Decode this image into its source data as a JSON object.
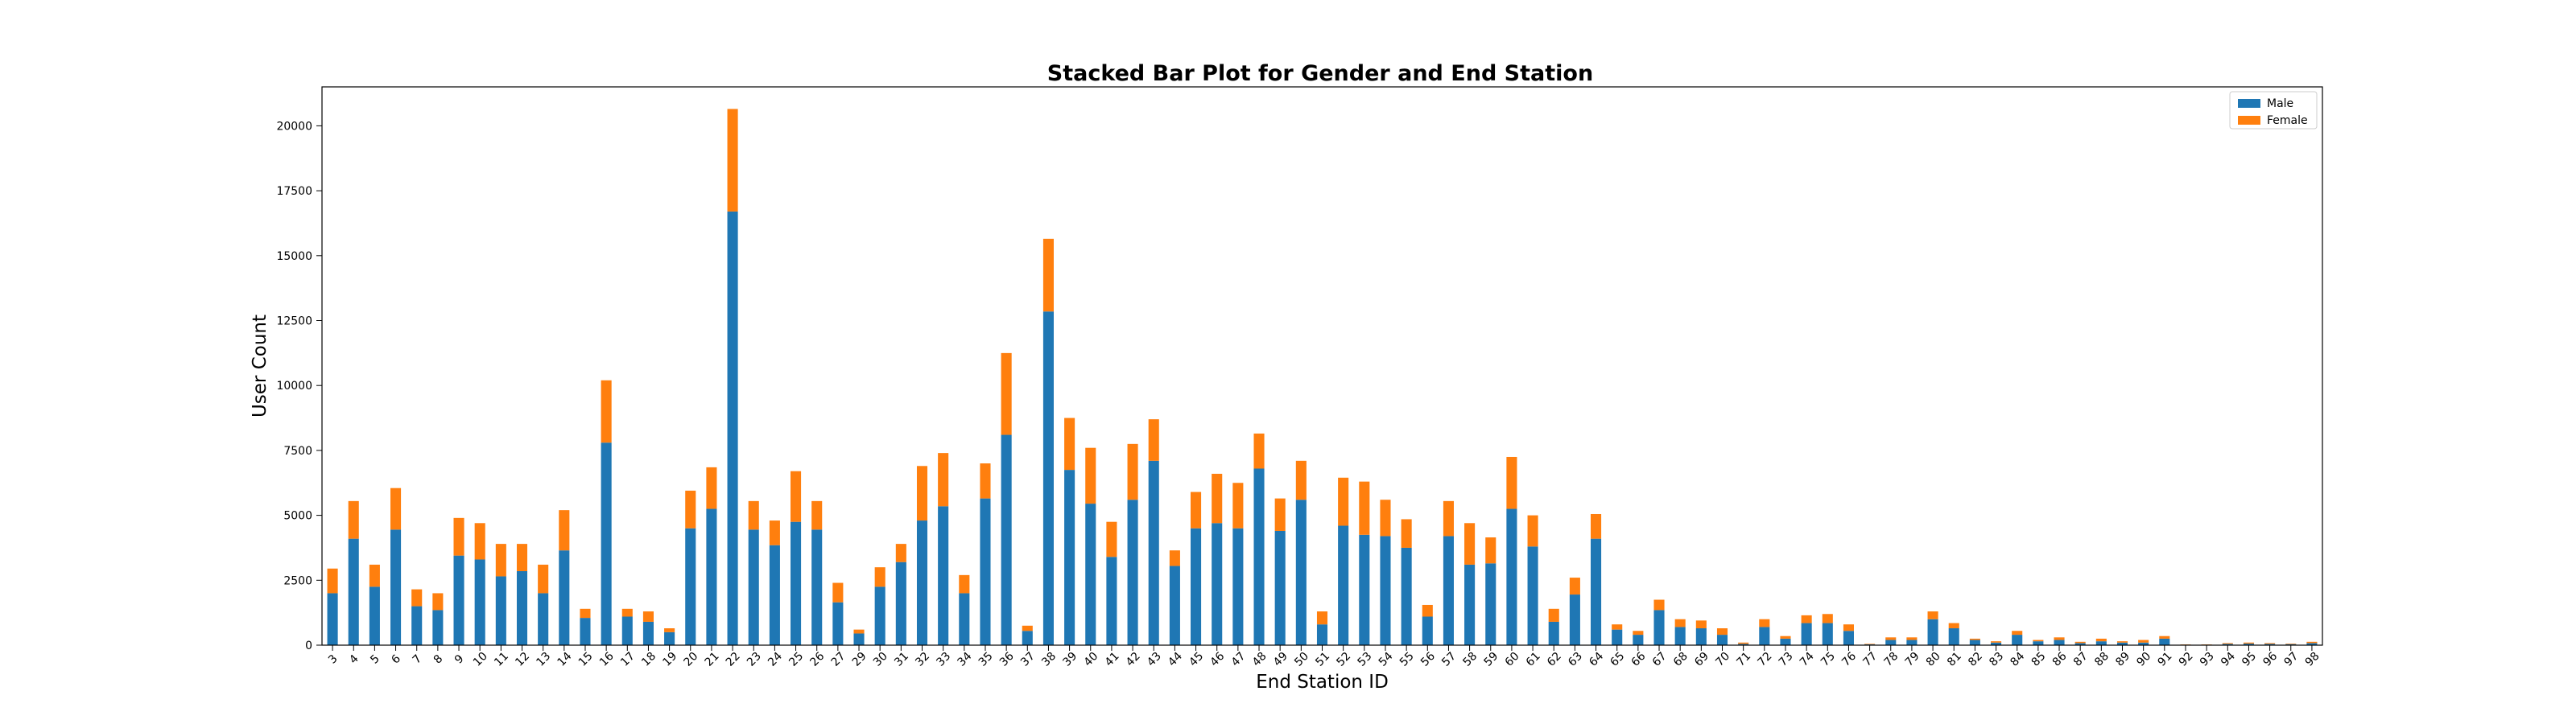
{
  "chart_data": {
    "type": "bar",
    "stacked": true,
    "title": "Stacked Bar Plot for Gender and End Station",
    "xlabel": "End Station ID",
    "ylabel": "User Count",
    "ylim": [
      0,
      21500
    ],
    "yticks": [
      0,
      2500,
      5000,
      7500,
      10000,
      12500,
      15000,
      17500,
      20000
    ],
    "legend_position": "top-right",
    "grid": false,
    "categories": [
      "3",
      "4",
      "5",
      "6",
      "7",
      "8",
      "9",
      "10",
      "11",
      "12",
      "13",
      "14",
      "15",
      "16",
      "17",
      "18",
      "19",
      "20",
      "21",
      "22",
      "23",
      "24",
      "25",
      "26",
      "27",
      "29",
      "30",
      "31",
      "32",
      "33",
      "34",
      "35",
      "36",
      "37",
      "38",
      "39",
      "40",
      "41",
      "42",
      "43",
      "44",
      "45",
      "46",
      "47",
      "48",
      "49",
      "50",
      "51",
      "52",
      "53",
      "54",
      "55",
      "56",
      "57",
      "58",
      "59",
      "60",
      "61",
      "62",
      "63",
      "64",
      "65",
      "66",
      "67",
      "68",
      "69",
      "70",
      "71",
      "72",
      "73",
      "74",
      "75",
      "76",
      "77",
      "78",
      "79",
      "80",
      "81",
      "82",
      "83",
      "84",
      "85",
      "86",
      "87",
      "88",
      "89",
      "90",
      "91",
      "92",
      "93",
      "94",
      "95",
      "96",
      "97",
      "98"
    ],
    "series": [
      {
        "name": "Male",
        "color": "#1f77b4",
        "values": [
          2000,
          4100,
          2250,
          4450,
          1500,
          1350,
          3450,
          3300,
          2650,
          2850,
          2000,
          3650,
          1050,
          7800,
          1100,
          900,
          500,
          4500,
          5250,
          16700,
          4450,
          3850,
          4750,
          4450,
          1650,
          450,
          2250,
          3200,
          4800,
          5350,
          2000,
          5650,
          8100,
          550,
          12850,
          6750,
          5450,
          3400,
          5600,
          7100,
          3050,
          4500,
          4700,
          4500,
          6800,
          4400,
          5600,
          800,
          4600,
          4250,
          4200,
          3750,
          1100,
          4200,
          3100,
          3150,
          5250,
          3800,
          900,
          1950,
          4100,
          600,
          400,
          1350,
          700,
          650,
          400,
          50,
          700,
          250,
          850,
          850,
          550,
          30,
          200,
          200,
          1000,
          650,
          200,
          100,
          400,
          150,
          200,
          80,
          150,
          100,
          100,
          250,
          20,
          20,
          50,
          60,
          50,
          40,
          80
        ]
      },
      {
        "name": "Female",
        "color": "#ff7f0e",
        "values": [
          950,
          1450,
          850,
          1600,
          650,
          650,
          1450,
          1400,
          1250,
          1050,
          1100,
          1550,
          350,
          2400,
          300,
          400,
          150,
          1450,
          1600,
          3950,
          1100,
          950,
          1950,
          1100,
          750,
          150,
          750,
          700,
          2100,
          2050,
          700,
          1350,
          3150,
          200,
          2800,
          2000,
          2150,
          1350,
          2150,
          1600,
          600,
          1400,
          1900,
          1750,
          1350,
          1250,
          1500,
          500,
          1850,
          2050,
          1400,
          1100,
          450,
          1350,
          1600,
          1000,
          2000,
          1200,
          500,
          650,
          950,
          200,
          150,
          400,
          300,
          300,
          250,
          50,
          300,
          100,
          300,
          350,
          250,
          20,
          100,
          100,
          300,
          200,
          50,
          50,
          150,
          50,
          100,
          50,
          100,
          50,
          100,
          100,
          10,
          10,
          30,
          40,
          30,
          20,
          50
        ]
      }
    ]
  }
}
